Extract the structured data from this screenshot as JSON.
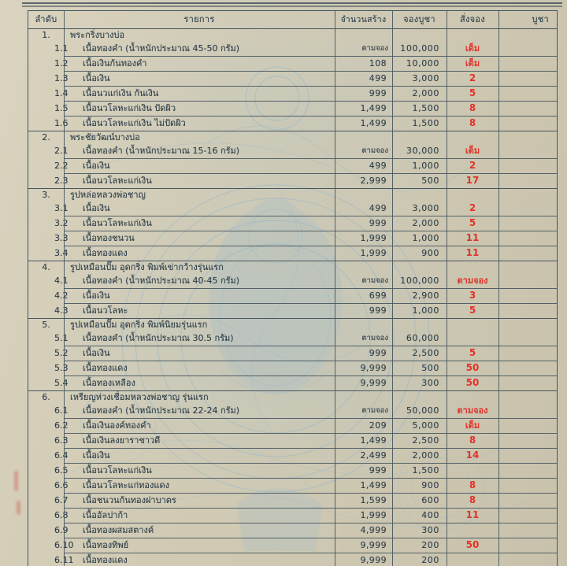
{
  "palette": {
    "paper": "#d2ccb6",
    "line": "#46555e",
    "ink": "#2f3f4a",
    "red": "#e0342a",
    "watermark_blue": "#7fb0cf"
  },
  "header": {
    "columns": [
      "ลำดับ",
      "รายการ",
      "จำนวนสร้าง",
      "จองบูชา",
      "สั่งจอง",
      "บูชา"
    ]
  },
  "groups": [
    {
      "no": "1.",
      "title": "พระกริ่งบางบ่อ",
      "items": [
        {
          "no": "1.1",
          "label": "เนื้อทองคำ (น้ำหนักประมาณ 45-50 กรัม)",
          "made": "ตามจอง",
          "price": "100,000",
          "order": "เต็ม",
          "worship": ""
        },
        {
          "no": "1.2",
          "label": "เนื้อเงินก้นทองคำ",
          "made": "108",
          "price": "10,000",
          "order": "เต็ม",
          "worship": ""
        },
        {
          "no": "1.3",
          "label": "เนื้อเงิน",
          "made": "499",
          "price": "3,000",
          "order": "2",
          "worship": ""
        },
        {
          "no": "1.4",
          "label": "เนื้อนวแก่เงิน ก้นเงิน",
          "made": "999",
          "price": "2,000",
          "order": "5",
          "worship": ""
        },
        {
          "no": "1.5",
          "label": "เนื้อนวโลหะแก่เงิน ปัดผิว",
          "made": "1,499",
          "price": "1,500",
          "order": "8",
          "worship": ""
        },
        {
          "no": "1.6",
          "label": "เนื้อนวโลหะแก่เงิน ไม่ปัดผิว",
          "made": "1,499",
          "price": "1,500",
          "order": "8",
          "worship": ""
        }
      ]
    },
    {
      "no": "2.",
      "title": "พระชัยวัฒน์บางบ่อ",
      "items": [
        {
          "no": "2.1",
          "label": "เนื้อทองคำ (น้ำหนักประมาณ 15-16 กรัม)",
          "made": "ตามจอง",
          "price": "30,000",
          "order": "เต็ม",
          "worship": ""
        },
        {
          "no": "2.2",
          "label": "เนื้อเงิน",
          "made": "499",
          "price": "1,000",
          "order": "2",
          "worship": ""
        },
        {
          "no": "2.3",
          "label": "เนื้อนวโลหะแก่เงิน",
          "made": "2,999",
          "price": "500",
          "order": "17",
          "worship": ""
        }
      ]
    },
    {
      "no": "3.",
      "title": "รูปหล่อหลวงพ่อชาญ",
      "items": [
        {
          "no": "3.1",
          "label": "เนื้อเงิน",
          "made": "499",
          "price": "3,000",
          "order": "2",
          "worship": ""
        },
        {
          "no": "3.2",
          "label": "เนื้อนวโลหะแก่เงิน",
          "made": "999",
          "price": "2,000",
          "order": "5",
          "worship": ""
        },
        {
          "no": "3.3",
          "label": "เนื้อทองชนวน",
          "made": "1,999",
          "price": "1,000",
          "order": "11",
          "worship": ""
        },
        {
          "no": "3.4",
          "label": "เนื้อทองแดง",
          "made": "1,999",
          "price": "900",
          "order": "11",
          "worship": ""
        }
      ]
    },
    {
      "no": "4.",
      "title": "รูปเหมือนปั๊ม  อุดกริ่ง  พิมพ์เข่ากว้างรุ่นแรก",
      "items": [
        {
          "no": "4.1",
          "label": "เนื้อทองคำ (น้ำหนักประมาณ 40-45 กรัม)",
          "made": "ตามจอง",
          "price": "100,000",
          "order": "ตามจอง",
          "worship": ""
        },
        {
          "no": "4.2",
          "label": "เนื้อเงิน",
          "made": "699",
          "price": "2,900",
          "order": "3",
          "worship": ""
        },
        {
          "no": "4.3",
          "label": "เนื้อนวโลหะ",
          "made": "999",
          "price": "1,000",
          "order": "5",
          "worship": ""
        }
      ]
    },
    {
      "no": "5.",
      "title": "รูปเหมือนปั๊ม  อุดกริ่ง  พิมพ์นิยมรุ่นแรก",
      "items": [
        {
          "no": "5.1",
          "label": "เนื้อทองคำ (น้ำหนักประมาณ 30.5 กรัม)",
          "made": "ตามจอง",
          "price": "60,000",
          "order": "",
          "worship": ""
        },
        {
          "no": "5.2",
          "label": "เนื้อเงิน",
          "made": "999",
          "price": "2,500",
          "order": "5",
          "worship": ""
        },
        {
          "no": "5.3",
          "label": "เนื้อทองแดง",
          "made": "9,999",
          "price": "500",
          "order": "50",
          "worship": ""
        },
        {
          "no": "5.4",
          "label": "เนื้อทองเหลือง",
          "made": "9,999",
          "price": "300",
          "order": "50",
          "worship": ""
        }
      ]
    },
    {
      "no": "6.",
      "title": "เหรียญห่วงเชื่อมหลวงพ่อชาญ  รุ่นแรก",
      "items": [
        {
          "no": "6.1",
          "label": "เนื้อทองคำ (น้ำหนักประมาณ 22-24 กรัม)",
          "made": "ตามจอง",
          "price": "50,000",
          "order": "ตามจอง",
          "worship": ""
        },
        {
          "no": "6.2",
          "label": "เนื้อเงินองค์ทองคำ",
          "made": "209",
          "price": "5,000",
          "order": "เต็ม",
          "worship": ""
        },
        {
          "no": "6.3",
          "label": "เนื้อเงินลงยาราชาวดี",
          "made": "1,499",
          "price": "2,500",
          "order": "8",
          "worship": ""
        },
        {
          "no": "6.4",
          "label": "เนื้อเงิน",
          "made": "2,499",
          "price": "2,000",
          "order": "14",
          "worship": ""
        },
        {
          "no": "6.5",
          "label": "เนื้อนวโลหะแก่เงิน",
          "made": "999",
          "price": "1,500",
          "order": "",
          "worship": ""
        },
        {
          "no": "6.6",
          "label": "เนื้อนวโลหะแก่ทองแดง",
          "made": "1,499",
          "price": "900",
          "order": "8",
          "worship": ""
        },
        {
          "no": "6.7",
          "label": "เนื้อชนวนก้นทองฝาบาตร",
          "made": "1,599",
          "price": "600",
          "order": "8",
          "worship": ""
        },
        {
          "no": "6.8",
          "label": "เนื้ออัลปาก้า",
          "made": "1,999",
          "price": "400",
          "order": "11",
          "worship": ""
        },
        {
          "no": "6.9",
          "label": "เนื้อทองผสมสตางค์",
          "made": "4,999",
          "price": "300",
          "order": "",
          "worship": ""
        },
        {
          "no": "6.10",
          "label": "เนื้อทองทิพย์",
          "made": "9,999",
          "price": "200",
          "order": "50",
          "worship": ""
        },
        {
          "no": "6.11",
          "label": "เนื้อทองแดง",
          "made": "9,999",
          "price": "200",
          "order": "",
          "worship": ""
        }
      ]
    }
  ]
}
